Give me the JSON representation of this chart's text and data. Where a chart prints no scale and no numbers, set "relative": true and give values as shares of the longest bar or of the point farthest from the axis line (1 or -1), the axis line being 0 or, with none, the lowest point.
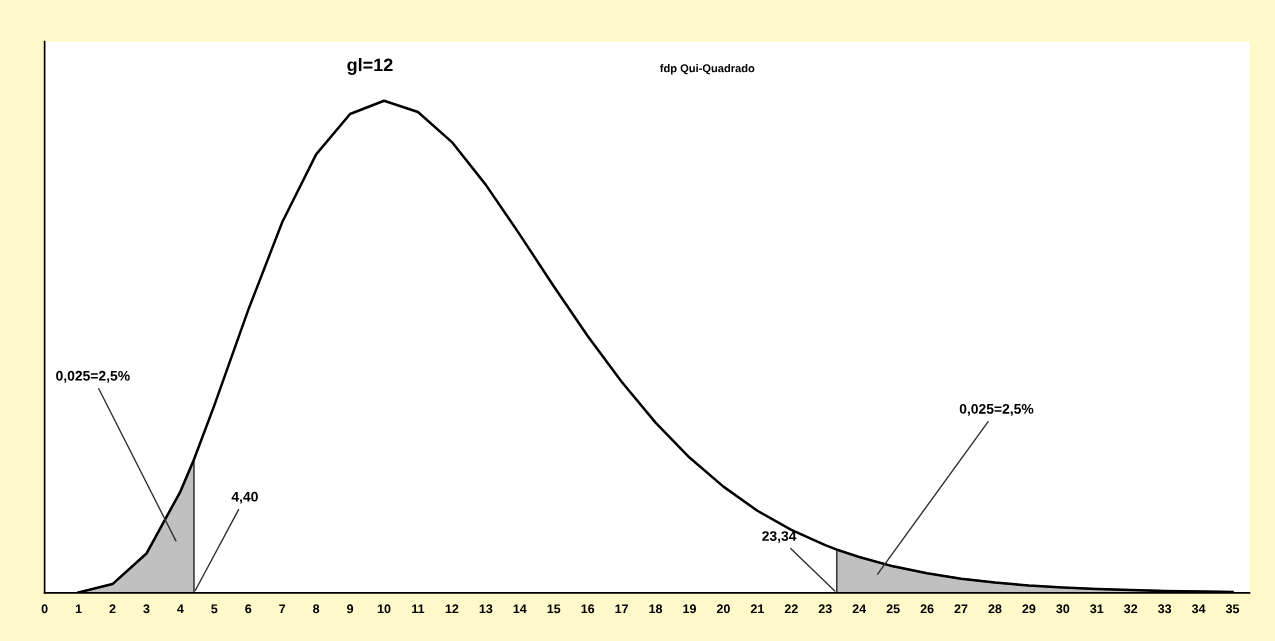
{
  "chart_data": {
    "type": "line",
    "relative": true,
    "legend": false,
    "grid": false,
    "marker": "none",
    "line_style": "solid",
    "x": [
      1,
      2,
      3,
      4,
      4.4,
      5,
      6,
      7,
      8,
      9,
      10,
      11,
      12,
      13,
      14,
      15,
      16,
      17,
      18,
      19,
      20,
      21,
      22,
      23,
      23.34,
      24,
      25,
      26,
      27,
      28,
      29,
      30,
      31,
      32,
      33,
      34,
      35
    ],
    "series": [
      {
        "color": "#000000",
        "values": [
          0.001,
          0.018,
          0.08,
          0.206,
          0.271,
          0.381,
          0.575,
          0.753,
          0.891,
          0.973,
          1,
          0.977,
          0.916,
          0.829,
          0.728,
          0.623,
          0.522,
          0.429,
          0.346,
          0.275,
          0.216,
          0.167,
          0.128,
          0.097,
          0.088,
          0.073,
          0.054,
          0.04,
          0.029,
          0.021,
          0.015,
          0.011,
          0.008,
          0.006,
          0.004,
          0.003,
          0.002
        ]
      },
      {
        "type": "area",
        "color": "#c0c0c0",
        "x": [
          1,
          2,
          3,
          4,
          4.4
        ],
        "values": [
          0.001,
          0.018,
          0.08,
          0.206,
          0.271
        ]
      },
      {
        "type": "area",
        "color": "#c0c0c0",
        "x": [
          23.34,
          24,
          25,
          26,
          27,
          28,
          29,
          30,
          31,
          32,
          33,
          34,
          35
        ],
        "values": [
          0.088,
          0.073,
          0.054,
          0.04,
          0.029,
          0.021,
          0.015,
          0.011,
          0.008,
          0.006,
          0.004,
          0.003,
          0.002
        ]
      }
    ],
    "xlim": [
      0,
      35.5
    ],
    "xticks": [
      0,
      1,
      2,
      3,
      4,
      5,
      6,
      7,
      8,
      9,
      10,
      11,
      12,
      13,
      14,
      15,
      16,
      17,
      18,
      19,
      20,
      21,
      22,
      23,
      24,
      25,
      26,
      27,
      28,
      29,
      30,
      31,
      32,
      33,
      34,
      35
    ],
    "annotations": [
      "gl=12",
      "fdp Qui-Quadrado",
      "0,025=2,5%",
      {
        "text": "4,40",
        "x": 4.4,
        "y": 0
      },
      {
        "text": "23,34",
        "x": 23.34,
        "y": 0
      },
      "0,025=2,5%"
    ]
  }
}
